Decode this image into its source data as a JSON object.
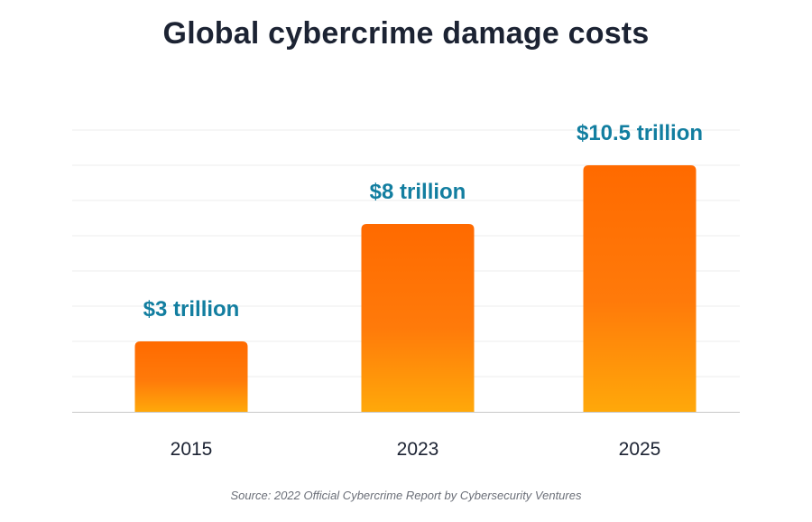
{
  "chart_data": {
    "type": "bar",
    "title": "Global cybercrime damage costs",
    "categories": [
      "2015",
      "2023",
      "2025"
    ],
    "values": [
      3,
      8,
      10.5
    ],
    "data_labels": [
      "$3 trillion",
      "$8 trillion",
      "$10.5 trillion"
    ],
    "xlabel": "",
    "ylabel": "",
    "ylim": [
      0,
      12
    ],
    "grid": true,
    "legend": "none",
    "source": "Source: 2022 Official Cybercrime Report by Cybersecurity Ventures"
  },
  "colors": {
    "title": "#1c2333",
    "data_label": "#127ea0",
    "bar_top": "#ff6a00",
    "bar_mid": "#ff7a0a",
    "bar_bottom": "#ffa80a",
    "gridline": "#ececec",
    "axis": "#c8c8c8",
    "tick_text": "#1c2333",
    "source_text": "#6b6f78"
  }
}
